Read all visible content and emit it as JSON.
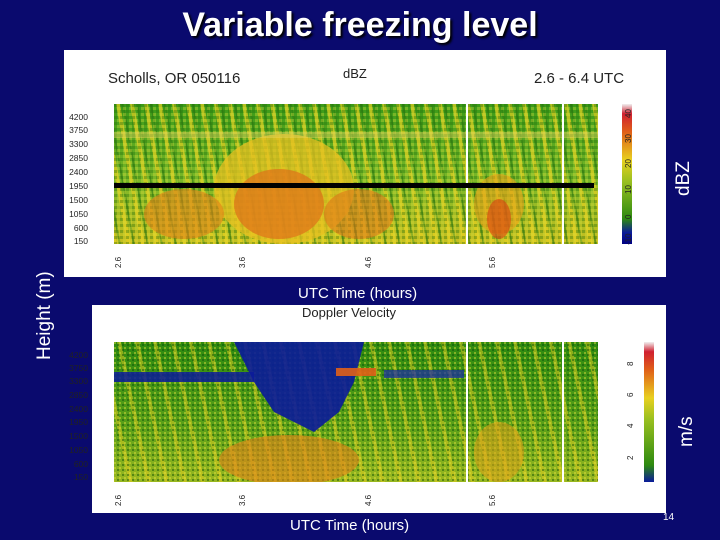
{
  "slide": {
    "title": "Variable freezing level",
    "left_label": "Height (m)",
    "page_number": "14"
  },
  "top_panel": {
    "site": "Scholls, OR 050116",
    "variable": "dBZ",
    "time_range": "2.6 - 6.4 UTC",
    "side_label": "dBZ",
    "x_axis_label": "UTC Time (hours)",
    "y_ticks": [
      "4200",
      "3750",
      "3300",
      "2850",
      "2400",
      "1950",
      "1500",
      "1050",
      "600",
      "150"
    ],
    "x_ticks": [
      "2.6",
      "3.6",
      "4.6",
      "5.6"
    ],
    "colorbar_ticks": [
      "-10",
      "0",
      "10",
      "20",
      "30",
      "40"
    ],
    "freezing_level_line": "1950"
  },
  "bottom_panel": {
    "variable": "Doppler Velocity",
    "side_label": "m/s",
    "x_axis_label": "UTC Time (hours)",
    "y_ticks": [
      "4200",
      "3750",
      "3300",
      "2850",
      "2400",
      "1950",
      "1500",
      "1050",
      "600",
      "150"
    ],
    "x_ticks": [
      "2.6",
      "3.6",
      "4.6",
      "5.6"
    ],
    "colorbar_ticks": [
      "2",
      "4",
      "6",
      "8"
    ]
  },
  "colors": {
    "background": "#0a0a6e",
    "reflectivity_low": "#2d8a10",
    "reflectivity_mid": "#e8d020",
    "reflectivity_high": "#d83010",
    "velocity_low": "#0a1a9a",
    "velocity_high": "#d83010",
    "freezing_line": "#000000"
  }
}
